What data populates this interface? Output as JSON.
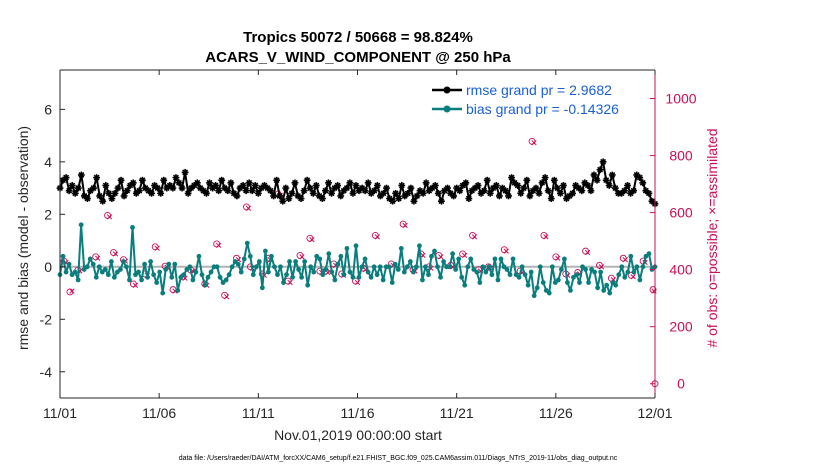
{
  "chart_data": {
    "type": "line",
    "title_line1": "Tropics 50072 / 50668 = 98.824%",
    "title_line2": "ACARS_V_WIND_COMPONENT @ 250 hPa",
    "ylabel_left": "rmse and bias (model - observation)",
    "ylabel_right": "# of obs: o=possible; ×=assimilated",
    "xlabel": "Nov.01,2019 00:00:00 start",
    "footer": "data file: /Users/raeder/DAI/ATM_forcXX/CAM6_setup/f.e21.FHIST_BGC.f09_025.CAM6assim.011/Diags_NTrS_2019-11/obs_diag_output.nc",
    "ylim_left": [
      -5,
      7.5
    ],
    "ylim_right": [
      -50,
      1100
    ],
    "xlim": [
      0,
      30
    ],
    "yticks_left": [
      "-4",
      "-2",
      "0",
      "2",
      "4",
      "6"
    ],
    "yticks_right": [
      "0",
      "200",
      "400",
      "600",
      "800",
      "1000"
    ],
    "xticks": [
      "11/01",
      "11/06",
      "11/11",
      "11/16",
      "11/21",
      "11/26",
      "12/01"
    ],
    "legend": [
      {
        "label": "rmse grand pr = 2.9682",
        "color": "#000000"
      },
      {
        "label": "bias grand pr = -0.14326",
        "color": "#0a7e7d"
      }
    ],
    "colors": {
      "rmse": "#000000",
      "bias": "#0a7e7d",
      "obs": "#c8105a",
      "zero": "#b3b3b3"
    },
    "series": [
      {
        "name": "rmse",
        "values": [
          3.0,
          3.3,
          3.4,
          2.9,
          3.1,
          2.8,
          3.0,
          3.5,
          2.7,
          2.6,
          2.9,
          3.0,
          3.4,
          2.7,
          2.5,
          3.1,
          2.8,
          2.6,
          2.8,
          3.0,
          3.3,
          2.7,
          2.9,
          3.1,
          3.2,
          2.8,
          2.9,
          3.3,
          3.0,
          2.9,
          2.8,
          3.1,
          3.0,
          2.8,
          3.3,
          3.0,
          3.1,
          3.0,
          3.4,
          3.2,
          3.0,
          3.6,
          2.8,
          3.0,
          3.1,
          3.2,
          3.0,
          2.9,
          2.8,
          3.2,
          3.0,
          3.1,
          2.9,
          3.3,
          3.0,
          2.9,
          3.2,
          2.8,
          2.7,
          3.0,
          3.1,
          2.9,
          3.2,
          2.9,
          3.1,
          2.8,
          3.0,
          3.1,
          3.0,
          2.9,
          2.7,
          3.3,
          2.7,
          2.5,
          3.0,
          2.6,
          2.8,
          3.2,
          2.7,
          2.6,
          2.9,
          3.3,
          3.0,
          2.8,
          3.1,
          2.7,
          2.6,
          2.9,
          3.2,
          2.8,
          3.0,
          3.1,
          2.7,
          2.9,
          3.0,
          3.2,
          2.8,
          3.1,
          2.9,
          3.0,
          2.9,
          3.2,
          2.8,
          2.9,
          3.1,
          2.7,
          2.8,
          3.0,
          2.6,
          2.5,
          2.8,
          2.6,
          3.1,
          2.7,
          2.8,
          3.0,
          2.5,
          2.7,
          2.9,
          2.8,
          3.2,
          2.9,
          3.0,
          3.1,
          2.8,
          2.5,
          2.9,
          3.0,
          2.8,
          2.7,
          3.0,
          2.9,
          3.1,
          3.2,
          2.6,
          2.9,
          3.0,
          3.1,
          2.8,
          2.9,
          3.3,
          2.8,
          3.0,
          3.1,
          2.7,
          3.0,
          2.9,
          2.7,
          3.4,
          3.2,
          3.1,
          2.8,
          3.0,
          3.3,
          2.7,
          2.9,
          3.0,
          2.8,
          3.2,
          3.4,
          2.9,
          2.6,
          3.3,
          3.0,
          2.8,
          3.1,
          2.6,
          2.7,
          2.8,
          3.1,
          3.0,
          2.9,
          3.2,
          3.1,
          2.9,
          3.5,
          3.3,
          3.7,
          4.0,
          3.3,
          3.1,
          3.5,
          3.0,
          2.8,
          2.8,
          2.9,
          3.1,
          2.8,
          2.9,
          3.5,
          3.4,
          3.2,
          2.9,
          2.8,
          2.5,
          2.4
        ]
      },
      {
        "name": "bias",
        "values": [
          -0.3,
          0.4,
          -0.2,
          0.1,
          -0.3,
          -0.2,
          -0.5,
          1.6,
          -0.1,
          0.0,
          0.3,
          0.1,
          -0.4,
          0.0,
          -0.2,
          -0.1,
          -0.3,
          0.2,
          -0.4,
          -0.2,
          -0.1,
          0.2,
          0.0,
          -0.5,
          1.5,
          -0.3,
          -0.2,
          -0.5,
          0.1,
          -0.4,
          0.2,
          -0.3,
          -0.6,
          -0.2,
          -1.0,
          -0.1,
          0.1,
          -0.4,
          0.1,
          -0.9,
          -0.4,
          -0.3,
          -0.1,
          0.0,
          -0.5,
          -0.2,
          0.4,
          -0.3,
          -0.7,
          -0.4,
          -0.2,
          0.0,
          0.0,
          -0.4,
          -0.6,
          -0.5,
          -0.3,
          0.0,
          0.2,
          0.1,
          -0.2,
          0.3,
          0.9,
          0.4,
          -0.3,
          0.0,
          0.2,
          -0.8,
          0.6,
          -0.2,
          0.4,
          0.0,
          -0.3,
          0.0,
          -0.6,
          -0.3,
          0.2,
          -0.4,
          0.2,
          -0.1,
          -0.4,
          0.2,
          -0.7,
          0.0,
          -0.2,
          0.4,
          0.3,
          -0.3,
          -0.1,
          0.5,
          -0.2,
          -0.5,
          0.1,
          0.4,
          -0.3,
          0.7,
          -0.2,
          -0.4,
          0.8,
          -0.4,
          0.0,
          0.3,
          -0.2,
          -0.4,
          0.0,
          -0.3,
          0.0,
          -0.5,
          0.0,
          0.0,
          -0.6,
          0.1,
          -0.1,
          0.7,
          -0.2,
          0.0,
          0.2,
          -0.2,
          0.0,
          0.8,
          -0.5,
          0.0,
          -0.3,
          0.4,
          0.6,
          0.0,
          -0.4,
          0.2,
          0.0,
          0.0,
          0.5,
          -0.1,
          0.3,
          -0.4,
          -0.7,
          0.0,
          0.3,
          -0.1,
          -0.2,
          -0.6,
          0.0,
          -0.2,
          0.0,
          -0.3,
          0.3,
          -0.5,
          0.3,
          0.0,
          -0.1,
          -0.3,
          0.3,
          -0.3,
          -0.4,
          0.0,
          -0.3,
          -0.7,
          -0.2,
          -1.1,
          -0.8,
          0.0,
          -0.6,
          -0.9,
          -1.0,
          0.0,
          -0.6,
          -0.5,
          -0.1,
          0.3,
          -0.6,
          -0.9,
          -0.4,
          -0.3,
          -0.6,
          0.0,
          -0.1,
          -0.6,
          -0.1,
          -0.2,
          -0.8,
          -0.2,
          -0.9,
          -0.7,
          -1.0,
          -0.6,
          -0.7,
          -0.3,
          0.0,
          -0.4,
          -0.2,
          0.4,
          -0.2,
          0.0,
          -0.5,
          0.0,
          0.4,
          0.5,
          -0.1,
          0.0
        ]
      },
      {
        "name": "obs_possible",
        "points": [
          [
            0.2,
            430
          ],
          [
            0.5,
            322
          ],
          [
            0.9,
            398
          ],
          [
            1.8,
            445
          ],
          [
            2.4,
            590
          ],
          [
            2.7,
            460
          ],
          [
            3.2,
            435
          ],
          [
            3.7,
            350
          ],
          [
            4.3,
            385
          ],
          [
            4.8,
            480
          ],
          [
            5.3,
            412
          ],
          [
            5.7,
            330
          ],
          [
            6.2,
            375
          ],
          [
            6.6,
            398
          ],
          [
            7.3,
            350
          ],
          [
            7.9,
            490
          ],
          [
            8.3,
            310
          ],
          [
            8.9,
            440
          ],
          [
            9.4,
            620
          ],
          [
            9.6,
            410
          ],
          [
            10.2,
            385
          ],
          [
            10.5,
            440
          ],
          [
            11.0,
            665
          ],
          [
            11.5,
            360
          ],
          [
            12.1,
            450
          ],
          [
            12.6,
            510
          ],
          [
            13.1,
            395
          ],
          [
            13.4,
            395
          ],
          [
            13.8,
            420
          ],
          [
            14.2,
            385
          ],
          [
            14.9,
            360
          ],
          [
            15.3,
            405
          ],
          [
            15.9,
            520
          ],
          [
            16.7,
            420
          ],
          [
            17.3,
            560
          ],
          [
            17.8,
            400
          ],
          [
            18.2,
            455
          ],
          [
            18.6,
            410
          ],
          [
            19.1,
            450
          ],
          [
            19.7,
            415
          ],
          [
            20.3,
            455
          ],
          [
            20.8,
            520
          ],
          [
            21.1,
            400
          ],
          [
            21.6,
            410
          ],
          [
            22.4,
            470
          ],
          [
            23.2,
            395
          ],
          [
            23.8,
            850
          ],
          [
            24.4,
            520
          ],
          [
            25.0,
            445
          ],
          [
            25.5,
            385
          ],
          [
            26.1,
            390
          ],
          [
            26.5,
            465
          ],
          [
            27.2,
            415
          ],
          [
            27.8,
            370
          ],
          [
            28.4,
            440
          ],
          [
            28.8,
            380
          ],
          [
            29.4,
            430
          ],
          [
            29.9,
            330
          ],
          [
            30.0,
            0
          ]
        ]
      },
      {
        "name": "obs_assimilated",
        "points": [
          [
            0.3,
            425
          ],
          [
            0.6,
            325
          ],
          [
            1.0,
            395
          ],
          [
            1.9,
            440
          ],
          [
            2.5,
            585
          ],
          [
            2.8,
            455
          ],
          [
            3.3,
            430
          ],
          [
            3.8,
            345
          ],
          [
            4.4,
            380
          ],
          [
            4.9,
            475
          ],
          [
            5.4,
            408
          ],
          [
            5.8,
            325
          ],
          [
            6.3,
            370
          ],
          [
            6.7,
            395
          ],
          [
            7.4,
            345
          ],
          [
            8.0,
            485
          ],
          [
            8.4,
            305
          ],
          [
            9.0,
            435
          ],
          [
            9.5,
            615
          ],
          [
            9.7,
            405
          ],
          [
            10.3,
            380
          ],
          [
            10.6,
            435
          ],
          [
            11.1,
            660
          ],
          [
            11.6,
            355
          ],
          [
            12.2,
            445
          ],
          [
            12.7,
            505
          ],
          [
            13.2,
            390
          ],
          [
            13.5,
            390
          ],
          [
            13.9,
            415
          ],
          [
            14.3,
            380
          ],
          [
            15.0,
            355
          ],
          [
            15.4,
            400
          ],
          [
            16.0,
            515
          ],
          [
            16.8,
            415
          ],
          [
            17.4,
            555
          ],
          [
            17.9,
            395
          ],
          [
            18.3,
            450
          ],
          [
            18.7,
            405
          ],
          [
            19.2,
            445
          ],
          [
            19.8,
            410
          ],
          [
            20.4,
            450
          ],
          [
            20.9,
            515
          ],
          [
            21.2,
            395
          ],
          [
            21.7,
            405
          ],
          [
            22.5,
            465
          ],
          [
            23.3,
            390
          ],
          [
            23.9,
            845
          ],
          [
            24.5,
            515
          ],
          [
            25.1,
            440
          ],
          [
            25.6,
            380
          ],
          [
            26.2,
            385
          ],
          [
            26.6,
            460
          ],
          [
            27.3,
            410
          ],
          [
            27.9,
            365
          ],
          [
            28.5,
            435
          ],
          [
            28.9,
            375
          ],
          [
            29.5,
            425
          ],
          [
            29.95,
            325
          ]
        ]
      }
    ]
  }
}
